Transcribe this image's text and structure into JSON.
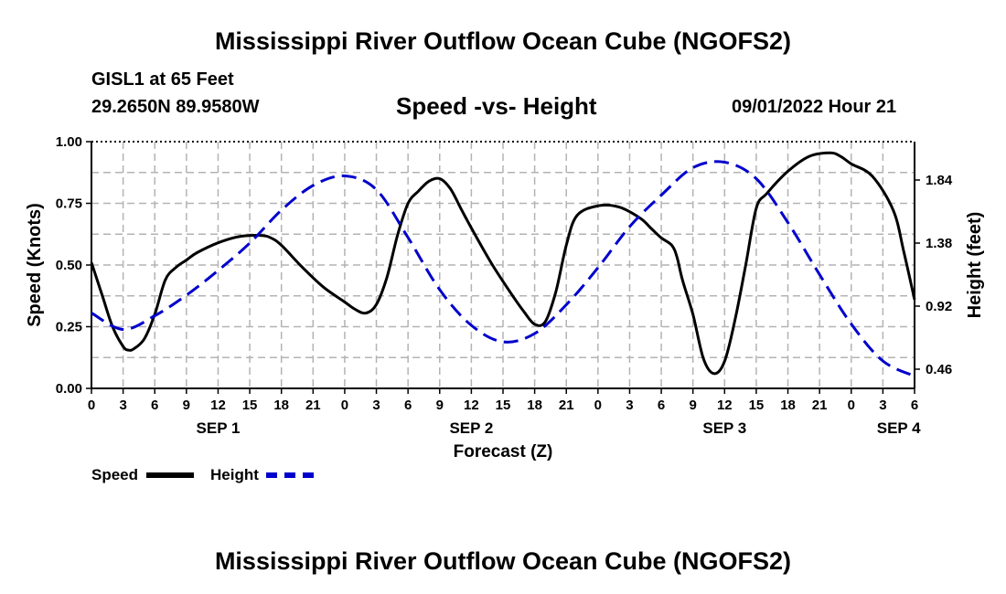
{
  "header": {
    "title": "Mississippi River Outflow Ocean Cube (NGOFS2)",
    "station": "GISL1 at 65 Feet",
    "coords": "29.2650N  89.9580W",
    "subtitle": "Speed -vs- Height",
    "datetime": "09/01/2022 Hour 21",
    "footer_title": "Mississippi River Outflow Ocean Cube (NGOFS2)"
  },
  "legend": {
    "speed_label": "Speed",
    "height_label": "Height",
    "speed_color": "#000000",
    "height_color": "#0000cc"
  },
  "chart_data": {
    "type": "line",
    "xlabel": "Forecast (Z)",
    "ylabel": "Speed (Knots)",
    "y2label": "Height (feet)",
    "x_hours_range": [
      0,
      78
    ],
    "ylim": [
      0,
      1
    ],
    "y2lim": [
      0.32,
      2.12
    ],
    "x_tick_labels": [
      "0",
      "3",
      "6",
      "9",
      "12",
      "15",
      "18",
      "21",
      "0",
      "3",
      "6",
      "9",
      "12",
      "15",
      "18",
      "21",
      "0",
      "3",
      "6",
      "9",
      "12",
      "15",
      "18",
      "21",
      "0",
      "3",
      "6"
    ],
    "date_labels": [
      {
        "label": "SEP 1",
        "hour": 12
      },
      {
        "label": "SEP 2",
        "hour": 36
      },
      {
        "label": "SEP 3",
        "hour": 60
      },
      {
        "label": "SEP 4",
        "hour": 76.5
      }
    ],
    "y_ticks": [
      "0.00",
      "0.25",
      "0.50",
      "0.75",
      "1.00"
    ],
    "y2_ticks": [
      "0.46",
      "0.92",
      "1.38",
      "1.84"
    ],
    "grid": true,
    "series": [
      {
        "name": "Speed",
        "axis": "left",
        "x": [
          0,
          1,
          2,
          3,
          3.5,
          4,
          5,
          6,
          7,
          8,
          9,
          10,
          12,
          14,
          16,
          17,
          18,
          20,
          22,
          24,
          25,
          26,
          27,
          28,
          29,
          30,
          31,
          32,
          33,
          34,
          35,
          36,
          38,
          40,
          41,
          42,
          43,
          44,
          45,
          46,
          48,
          50,
          52,
          53,
          54,
          55,
          55.5,
          56,
          57,
          58,
          59,
          60,
          61,
          62,
          63,
          64,
          66,
          68,
          70,
          71,
          72,
          74,
          76,
          77,
          78
        ],
        "values": [
          0.51,
          0.38,
          0.25,
          0.17,
          0.155,
          0.16,
          0.2,
          0.3,
          0.44,
          0.49,
          0.52,
          0.55,
          0.59,
          0.615,
          0.62,
          0.61,
          0.58,
          0.49,
          0.41,
          0.35,
          0.32,
          0.305,
          0.34,
          0.45,
          0.62,
          0.75,
          0.8,
          0.84,
          0.85,
          0.81,
          0.73,
          0.65,
          0.5,
          0.37,
          0.31,
          0.26,
          0.27,
          0.39,
          0.58,
          0.7,
          0.74,
          0.735,
          0.69,
          0.65,
          0.61,
          0.58,
          0.53,
          0.44,
          0.3,
          0.12,
          0.06,
          0.11,
          0.28,
          0.5,
          0.73,
          0.79,
          0.88,
          0.94,
          0.955,
          0.94,
          0.91,
          0.86,
          0.72,
          0.55,
          0.36
        ]
      },
      {
        "name": "Height",
        "axis": "right",
        "x": [
          0,
          3,
          6,
          9,
          12,
          15,
          18,
          21,
          24,
          27,
          30,
          33,
          36,
          39,
          42,
          45,
          48,
          51,
          54,
          57,
          60,
          63,
          66,
          69,
          72,
          75,
          78
        ],
        "values": [
          0.87,
          0.75,
          0.85,
          1.0,
          1.18,
          1.38,
          1.62,
          1.8,
          1.87,
          1.77,
          1.42,
          1.04,
          0.78,
          0.66,
          0.72,
          0.93,
          1.2,
          1.5,
          1.73,
          1.93,
          1.97,
          1.85,
          1.53,
          1.15,
          0.79,
          0.52,
          0.41
        ]
      }
    ]
  }
}
